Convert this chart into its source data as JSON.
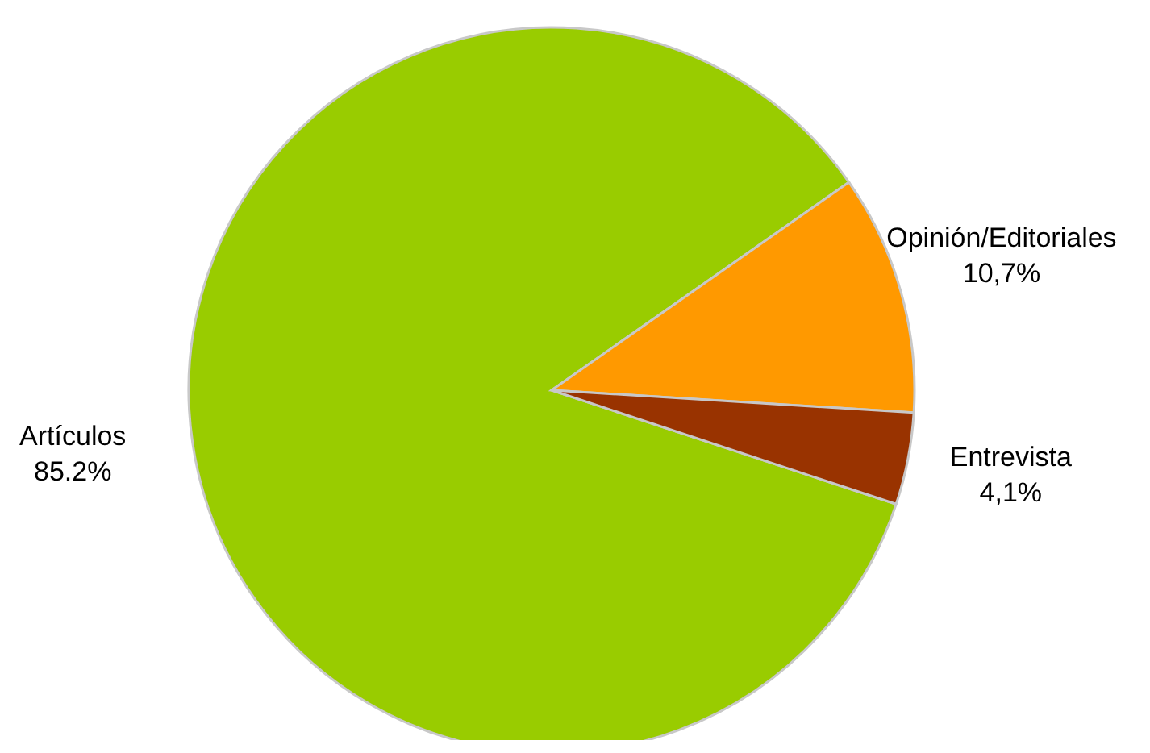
{
  "chart_data": {
    "type": "pie",
    "categories": [
      "Artículos",
      "Opinión/Editoriales",
      "Entrevista"
    ],
    "values": [
      85.2,
      10.7,
      4.1
    ],
    "colors": [
      "#99cc00",
      "#ff9900",
      "#993300"
    ],
    "value_labels": [
      "85.2%",
      "10,7%",
      "4,1%"
    ],
    "legend": false
  }
}
